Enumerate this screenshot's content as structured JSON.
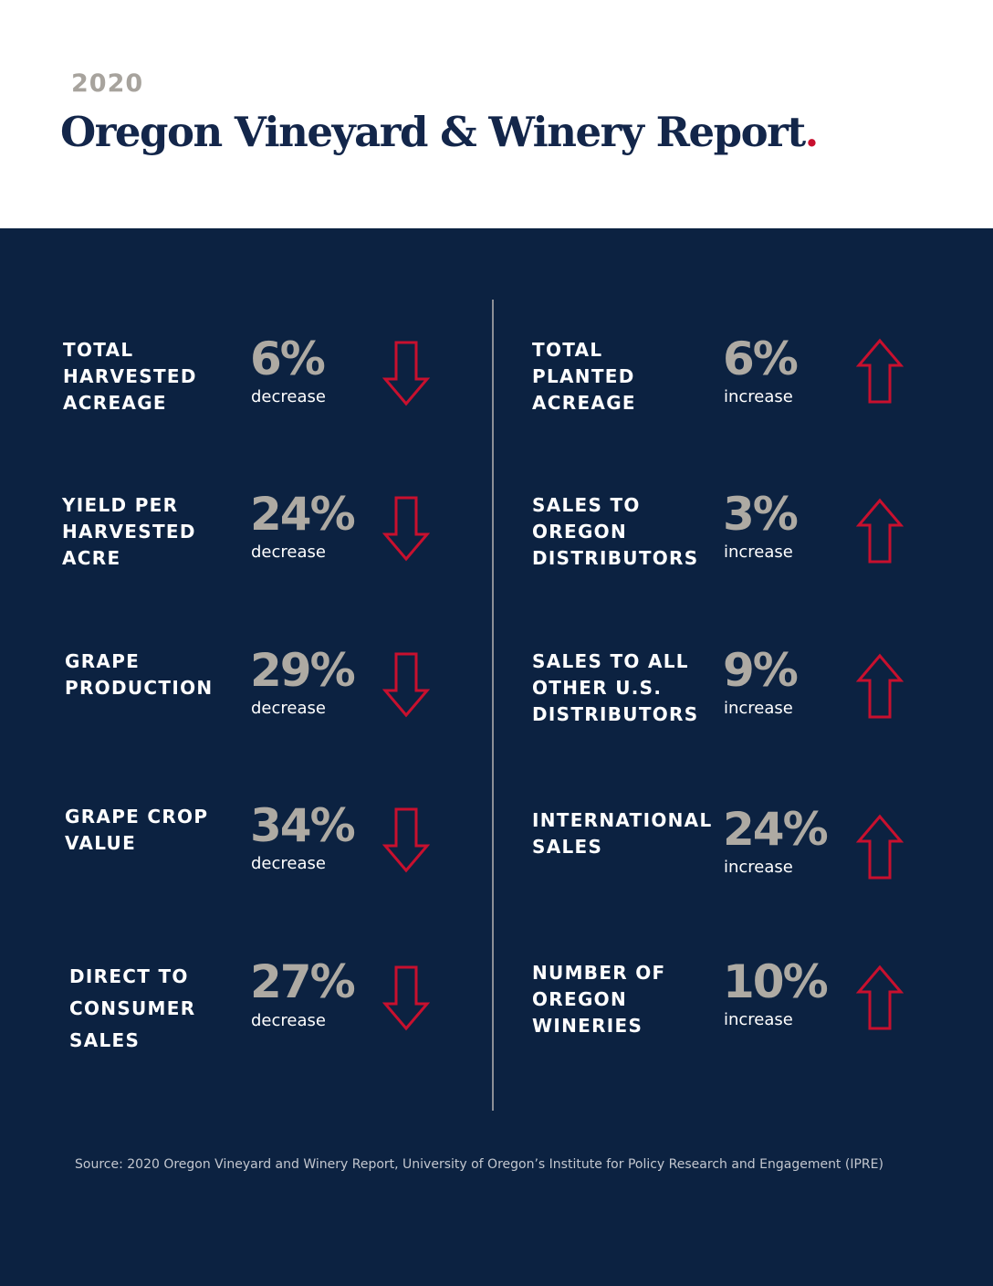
{
  "header": {
    "year": "2020",
    "title": "Oregon Vineyard & Winery Report",
    "title_dot": "."
  },
  "colors": {
    "background": "#0c2241",
    "title": "#13264a",
    "accent": "#c8102e",
    "value": "#aeaaa3"
  },
  "left_stats": [
    {
      "label_lines": [
        "TOTAL",
        "HARVESTED",
        "ACREAGE"
      ],
      "value": "6%",
      "direction": "decrease",
      "icon": "arrow-down-icon"
    },
    {
      "label_lines": [
        "YIELD PER",
        "HARVESTED",
        "ACRE"
      ],
      "value": "24%",
      "direction": "decrease",
      "icon": "arrow-down-icon"
    },
    {
      "label_lines": [
        "GRAPE",
        "PRODUCTION"
      ],
      "value": "29%",
      "direction": "decrease",
      "icon": "arrow-down-icon"
    },
    {
      "label_lines": [
        "GRAPE CROP",
        "VALUE"
      ],
      "value": "34%",
      "direction": "decrease",
      "icon": "arrow-down-icon"
    },
    {
      "label_lines": [
        "DIRECT TO",
        "CONSUMER",
        "SALES"
      ],
      "value": "27%",
      "direction": "decrease",
      "icon": "arrow-down-icon"
    }
  ],
  "right_stats": [
    {
      "label_lines": [
        "TOTAL",
        "PLANTED",
        "ACREAGE"
      ],
      "value": "6%",
      "direction": "increase",
      "icon": "arrow-up-icon"
    },
    {
      "label_lines": [
        "SALES TO",
        "OREGON",
        "DISTRIBUTORS"
      ],
      "value": "3%",
      "direction": "increase",
      "icon": "arrow-up-icon"
    },
    {
      "label_lines": [
        "SALES TO ALL",
        "OTHER U.S.",
        "DISTRIBUTORS"
      ],
      "value": "9%",
      "direction": "increase",
      "icon": "arrow-up-icon"
    },
    {
      "label_lines": [
        "INTERNATIONAL",
        "SALES"
      ],
      "value": "24%",
      "direction": "increase",
      "icon": "arrow-up-icon"
    },
    {
      "label_lines": [
        "NUMBER OF",
        "OREGON",
        "WINERIES"
      ],
      "value": "10%",
      "direction": "increase",
      "icon": "arrow-up-icon"
    }
  ],
  "source": "Source: 2020 Oregon Vineyard and Winery Report, University of Oregon’s Institute for Policy Research and Engagement (IPRE)"
}
